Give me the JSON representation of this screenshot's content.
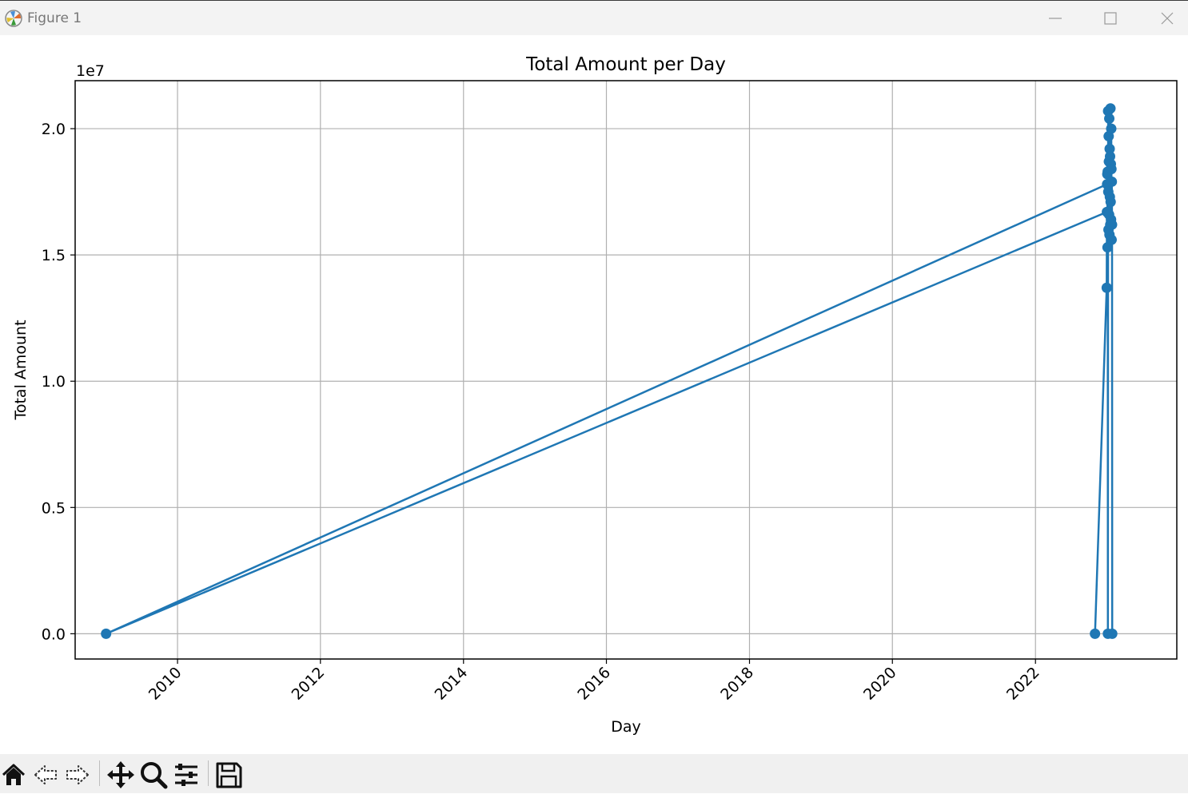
{
  "window": {
    "title": "Figure 1",
    "controls": [
      "minimize",
      "maximize",
      "close"
    ]
  },
  "toolbar": {
    "items": [
      {
        "name": "home-icon",
        "tooltip": "Reset original view"
      },
      {
        "name": "back-icon",
        "tooltip": "Back to previous view"
      },
      {
        "name": "forward-icon",
        "tooltip": "Forward to next view"
      },
      {
        "name": "pan-icon",
        "tooltip": "Pan axes"
      },
      {
        "name": "zoom-icon",
        "tooltip": "Zoom to rectangle"
      },
      {
        "name": "configure-subplots-icon",
        "tooltip": "Configure subplots"
      },
      {
        "name": "save-icon",
        "tooltip": "Save the figure"
      }
    ]
  },
  "chart_data": {
    "type": "line",
    "title": "Total Amount per Day",
    "xlabel": "Day",
    "ylabel": "Total Amount",
    "y_offset_label": "1e7",
    "y_ticks": [
      "0.0",
      "0.5",
      "1.0",
      "1.5",
      "2.0"
    ],
    "y_tick_values": [
      0,
      5000000,
      10000000,
      15000000,
      20000000
    ],
    "x_ticks": [
      "2010",
      "2012",
      "2014",
      "2016",
      "2018",
      "2020",
      "2022"
    ],
    "xlim": [
      "2008-07-27",
      "2023-12-24"
    ],
    "ylim": [
      -1000000,
      21900000
    ],
    "grid": true,
    "line_color": "#1f77b4",
    "marker": "circle",
    "series": [
      {
        "points": [
          [
            "2022-11-01",
            0
          ],
          [
            "2022-12-31",
            13700000
          ],
          [
            "2023-01-01",
            16700000
          ],
          [
            "2009-01-01",
            0
          ],
          [
            "2023-01-02",
            17800000
          ],
          [
            "2023-01-03",
            18200000
          ],
          [
            "2023-01-04",
            15300000
          ],
          [
            "2023-01-05",
            18300000
          ],
          [
            "2023-01-06",
            0
          ],
          [
            "2023-01-07",
            20700000
          ],
          [
            "2023-01-08",
            17500000
          ],
          [
            "2023-01-09",
            16000000
          ],
          [
            "2023-01-10",
            19700000
          ],
          [
            "2023-01-11",
            18700000
          ],
          [
            "2023-01-12",
            16600000
          ],
          [
            "2023-01-13",
            20400000
          ],
          [
            "2023-01-14",
            15800000
          ],
          [
            "2023-01-15",
            19200000
          ],
          [
            "2023-01-16",
            17300000
          ],
          [
            "2023-01-17",
            18900000
          ],
          [
            "2023-01-18",
            16200000
          ],
          [
            "2023-01-19",
            20800000
          ],
          [
            "2023-01-20",
            17100000
          ],
          [
            "2023-01-21",
            18600000
          ],
          [
            "2023-01-22",
            16400000
          ],
          [
            "2023-01-23",
            20000000
          ],
          [
            "2023-01-24",
            18400000
          ],
          [
            "2023-01-25",
            15600000
          ],
          [
            "2023-01-26",
            17900000
          ],
          [
            "2023-01-27",
            16200000
          ],
          [
            "2023-01-28",
            0
          ]
        ]
      }
    ]
  }
}
